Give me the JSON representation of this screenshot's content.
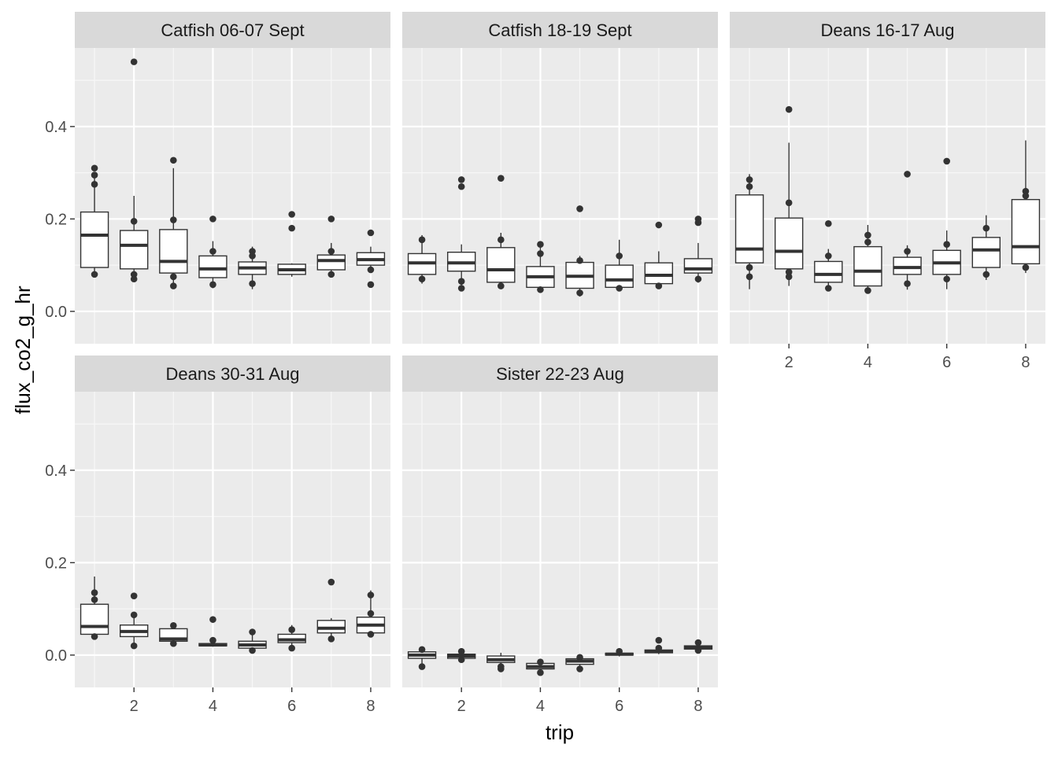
{
  "chart_data": {
    "type": "boxplot",
    "xlabel": "trip",
    "ylabel": "flux_co2_g_hr",
    "xlim": [
      0.5,
      8.5
    ],
    "ylim": [
      -0.07,
      0.57
    ],
    "x_ticks": [
      2,
      4,
      6,
      8
    ],
    "y_ticks": [
      0.0,
      0.2,
      0.4
    ],
    "y_tick_labels": [
      "0.0",
      "0.2",
      "0.4"
    ],
    "grid": true,
    "facets": [
      {
        "title": "Catfish 06-07 Sept",
        "boxes": [
          {
            "trip": 1,
            "q1": 0.095,
            "median": 0.165,
            "q3": 0.215,
            "whisker_low": 0.075,
            "whisker_high": 0.29,
            "outliers": [
              0.31,
              0.295,
              0.275,
              0.08
            ]
          },
          {
            "trip": 2,
            "q1": 0.092,
            "median": 0.143,
            "q3": 0.175,
            "whisker_low": 0.068,
            "whisker_high": 0.25,
            "outliers": [
              0.54,
              0.195,
              0.08,
              0.07
            ]
          },
          {
            "trip": 3,
            "q1": 0.083,
            "median": 0.108,
            "q3": 0.177,
            "whisker_low": 0.05,
            "whisker_high": 0.31,
            "outliers": [
              0.327,
              0.198,
              0.075,
              0.055
            ]
          },
          {
            "trip": 4,
            "q1": 0.073,
            "median": 0.092,
            "q3": 0.12,
            "whisker_low": 0.05,
            "whisker_high": 0.152,
            "outliers": [
              0.2,
              0.13,
              0.058
            ]
          },
          {
            "trip": 5,
            "q1": 0.08,
            "median": 0.094,
            "q3": 0.107,
            "whisker_low": 0.048,
            "whisker_high": 0.14,
            "outliers": [
              0.13,
              0.12,
              0.06
            ]
          },
          {
            "trip": 6,
            "q1": 0.08,
            "median": 0.09,
            "q3": 0.102,
            "whisker_low": 0.075,
            "whisker_high": 0.104,
            "outliers": [
              0.21,
              0.18
            ]
          },
          {
            "trip": 7,
            "q1": 0.09,
            "median": 0.11,
            "q3": 0.122,
            "whisker_low": 0.073,
            "whisker_high": 0.148,
            "outliers": [
              0.2,
              0.13,
              0.08
            ]
          },
          {
            "trip": 8,
            "q1": 0.1,
            "median": 0.112,
            "q3": 0.127,
            "whisker_low": 0.083,
            "whisker_high": 0.14,
            "outliers": [
              0.17,
              0.09,
              0.058
            ]
          }
        ]
      },
      {
        "title": "Catfish 18-19 Sept",
        "boxes": [
          {
            "trip": 1,
            "q1": 0.08,
            "median": 0.105,
            "q3": 0.125,
            "whisker_low": 0.06,
            "whisker_high": 0.165,
            "outliers": [
              0.155,
              0.07
            ]
          },
          {
            "trip": 2,
            "q1": 0.087,
            "median": 0.105,
            "q3": 0.128,
            "whisker_low": 0.047,
            "whisker_high": 0.145,
            "outliers": [
              0.285,
              0.27,
              0.065,
              0.05
            ]
          },
          {
            "trip": 3,
            "q1": 0.063,
            "median": 0.09,
            "q3": 0.138,
            "whisker_low": 0.048,
            "whisker_high": 0.17,
            "outliers": [
              0.288,
              0.155,
              0.055
            ]
          },
          {
            "trip": 4,
            "q1": 0.052,
            "median": 0.075,
            "q3": 0.097,
            "whisker_low": 0.043,
            "whisker_high": 0.152,
            "outliers": [
              0.145,
              0.125,
              0.047
            ]
          },
          {
            "trip": 5,
            "q1": 0.05,
            "median": 0.076,
            "q3": 0.106,
            "whisker_low": 0.032,
            "whisker_high": 0.12,
            "outliers": [
              0.222,
              0.11,
              0.04
            ]
          },
          {
            "trip": 6,
            "q1": 0.052,
            "median": 0.068,
            "q3": 0.1,
            "whisker_low": 0.045,
            "whisker_high": 0.155,
            "outliers": [
              0.12,
              0.05
            ]
          },
          {
            "trip": 7,
            "q1": 0.06,
            "median": 0.078,
            "q3": 0.105,
            "whisker_low": 0.05,
            "whisker_high": 0.13,
            "outliers": [
              0.187,
              0.055
            ]
          },
          {
            "trip": 8,
            "q1": 0.083,
            "median": 0.092,
            "q3": 0.114,
            "whisker_low": 0.062,
            "whisker_high": 0.148,
            "outliers": [
              0.2,
              0.192,
              0.07
            ]
          }
        ]
      },
      {
        "title": "Deans 16-17 Aug",
        "boxes": [
          {
            "trip": 1,
            "q1": 0.105,
            "median": 0.135,
            "q3": 0.252,
            "whisker_low": 0.048,
            "whisker_high": 0.297,
            "outliers": [
              0.285,
              0.27,
              0.095,
              0.075
            ]
          },
          {
            "trip": 2,
            "q1": 0.092,
            "median": 0.13,
            "q3": 0.202,
            "whisker_low": 0.055,
            "whisker_high": 0.365,
            "outliers": [
              0.437,
              0.235,
              0.085,
              0.075
            ]
          },
          {
            "trip": 3,
            "q1": 0.063,
            "median": 0.08,
            "q3": 0.108,
            "whisker_low": 0.045,
            "whisker_high": 0.135,
            "outliers": [
              0.19,
              0.12,
              0.05
            ]
          },
          {
            "trip": 4,
            "q1": 0.055,
            "median": 0.087,
            "q3": 0.14,
            "whisker_low": 0.04,
            "whisker_high": 0.187,
            "outliers": [
              0.165,
              0.15,
              0.045
            ]
          },
          {
            "trip": 5,
            "q1": 0.08,
            "median": 0.095,
            "q3": 0.117,
            "whisker_low": 0.047,
            "whisker_high": 0.143,
            "outliers": [
              0.297,
              0.13,
              0.06
            ]
          },
          {
            "trip": 6,
            "q1": 0.08,
            "median": 0.105,
            "q3": 0.132,
            "whisker_low": 0.048,
            "whisker_high": 0.175,
            "outliers": [
              0.325,
              0.145,
              0.07
            ]
          },
          {
            "trip": 7,
            "q1": 0.095,
            "median": 0.133,
            "q3": 0.16,
            "whisker_low": 0.068,
            "whisker_high": 0.208,
            "outliers": [
              0.18,
              0.08
            ]
          },
          {
            "trip": 8,
            "q1": 0.103,
            "median": 0.14,
            "q3": 0.242,
            "whisker_low": 0.083,
            "whisker_high": 0.37,
            "outliers": [
              0.26,
              0.25,
              0.095
            ]
          }
        ]
      },
      {
        "title": "Deans 30-31 Aug",
        "boxes": [
          {
            "trip": 1,
            "q1": 0.045,
            "median": 0.062,
            "q3": 0.11,
            "whisker_low": 0.038,
            "whisker_high": 0.17,
            "outliers": [
              0.135,
              0.12,
              0.04
            ]
          },
          {
            "trip": 2,
            "q1": 0.04,
            "median": 0.051,
            "q3": 0.065,
            "whisker_low": 0.013,
            "whisker_high": 0.09,
            "outliers": [
              0.128,
              0.087,
              0.02
            ]
          },
          {
            "trip": 3,
            "q1": 0.03,
            "median": 0.035,
            "q3": 0.057,
            "whisker_low": 0.02,
            "whisker_high": 0.066,
            "outliers": [
              0.064,
              0.025
            ]
          },
          {
            "trip": 4,
            "q1": 0.02,
            "median": 0.022,
            "q3": 0.025,
            "whisker_low": 0.018,
            "whisker_high": 0.035,
            "outliers": [
              0.077,
              0.032
            ]
          },
          {
            "trip": 5,
            "q1": 0.015,
            "median": 0.022,
            "q3": 0.03,
            "whisker_low": 0.003,
            "whisker_high": 0.055,
            "outliers": [
              0.05,
              0.01
            ]
          },
          {
            "trip": 6,
            "q1": 0.027,
            "median": 0.033,
            "q3": 0.045,
            "whisker_low": 0.01,
            "whisker_high": 0.065,
            "outliers": [
              0.055,
              0.015
            ]
          },
          {
            "trip": 7,
            "q1": 0.048,
            "median": 0.058,
            "q3": 0.075,
            "whisker_low": 0.03,
            "whisker_high": 0.08,
            "outliers": [
              0.158,
              0.035
            ]
          },
          {
            "trip": 8,
            "q1": 0.048,
            "median": 0.065,
            "q3": 0.082,
            "whisker_low": 0.04,
            "whisker_high": 0.14,
            "outliers": [
              0.13,
              0.09,
              0.045
            ]
          }
        ]
      },
      {
        "title": "Sister 22-23 Aug",
        "boxes": [
          {
            "trip": 1,
            "q1": -0.007,
            "median": 0.0,
            "q3": 0.007,
            "whisker_low": -0.03,
            "whisker_high": 0.017,
            "outliers": [
              0.012,
              -0.025
            ]
          },
          {
            "trip": 2,
            "q1": -0.007,
            "median": -0.002,
            "q3": 0.002,
            "whisker_low": -0.012,
            "whisker_high": 0.01,
            "outliers": [
              0.008,
              -0.01
            ]
          },
          {
            "trip": 3,
            "q1": -0.016,
            "median": -0.01,
            "q3": -0.002,
            "whisker_low": -0.033,
            "whisker_high": 0.005,
            "outliers": [
              -0.03,
              -0.025
            ]
          },
          {
            "trip": 4,
            "q1": -0.03,
            "median": -0.025,
            "q3": -0.018,
            "whisker_low": -0.042,
            "whisker_high": -0.01,
            "outliers": [
              -0.038,
              -0.015
            ]
          },
          {
            "trip": 5,
            "q1": -0.02,
            "median": -0.013,
            "q3": -0.008,
            "whisker_low": -0.035,
            "whisker_high": -0.002,
            "outliers": [
              -0.03,
              -0.005
            ]
          },
          {
            "trip": 6,
            "q1": 0.0,
            "median": 0.002,
            "q3": 0.004,
            "whisker_low": -0.003,
            "whisker_high": 0.01,
            "outliers": [
              0.008
            ]
          },
          {
            "trip": 7,
            "q1": 0.005,
            "median": 0.008,
            "q3": 0.011,
            "whisker_low": 0.002,
            "whisker_high": 0.016,
            "outliers": [
              0.032,
              0.015
            ]
          },
          {
            "trip": 8,
            "q1": 0.013,
            "median": 0.017,
            "q3": 0.02,
            "whisker_low": 0.005,
            "whisker_high": 0.03,
            "outliers": [
              0.027,
              0.01
            ]
          }
        ]
      }
    ]
  }
}
